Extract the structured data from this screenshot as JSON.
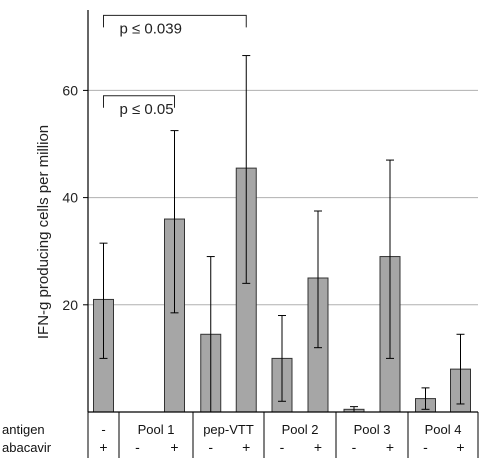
{
  "chart_data": {
    "type": "bar",
    "ylabel": "IFN-g producing cells per million",
    "ylim": [
      0,
      75
    ],
    "yticks": [
      20,
      40,
      60
    ],
    "grid": true,
    "colors": {
      "bar": "#a6a6a6",
      "bar_stroke": "#333333",
      "grid": "#b0b0b0",
      "axis": "#000000"
    },
    "groups": [
      {
        "label": "-",
        "bars": [
          {
            "abacavir": "+",
            "value": 21,
            "err_low": 10,
            "err_high": 31.5
          }
        ]
      },
      {
        "label": "Pool 1",
        "bars": [
          {
            "abacavir": "-",
            "value": 0,
            "err_low": 0,
            "err_high": 0
          },
          {
            "abacavir": "+",
            "value": 36,
            "err_low": 18.5,
            "err_high": 52.5
          }
        ]
      },
      {
        "label": "pep-VTT",
        "bars": [
          {
            "abacavir": "-",
            "value": 14.5,
            "err_low": 0,
            "err_high": 29
          },
          {
            "abacavir": "+",
            "value": 45.5,
            "err_low": 24,
            "err_high": 66.5
          }
        ]
      },
      {
        "label": "Pool 2",
        "bars": [
          {
            "abacavir": "-",
            "value": 10,
            "err_low": 2,
            "err_high": 18
          },
          {
            "abacavir": "+",
            "value": 25,
            "err_low": 12,
            "err_high": 37.5
          }
        ]
      },
      {
        "label": "Pool 3",
        "bars": [
          {
            "abacavir": "-",
            "value": 0.5,
            "err_low": 0,
            "err_high": 1
          },
          {
            "abacavir": "+",
            "value": 29,
            "err_low": 10,
            "err_high": 47
          }
        ]
      },
      {
        "label": "Pool 4",
        "bars": [
          {
            "abacavir": "-",
            "value": 2.5,
            "err_low": 0.5,
            "err_high": 4.5
          },
          {
            "abacavir": "+",
            "value": 8,
            "err_low": 1.5,
            "err_high": 14.5
          }
        ]
      }
    ],
    "row_labels": {
      "antigen": "antigen",
      "abacavir": "abacavir"
    },
    "annotations": [
      {
        "text": "p ≤ 0.039",
        "from_bar": 0,
        "to_bar": 4,
        "y": 74
      },
      {
        "text": "p ≤ 0.05",
        "from_bar": 0,
        "to_bar": 2,
        "y": 59
      }
    ]
  }
}
